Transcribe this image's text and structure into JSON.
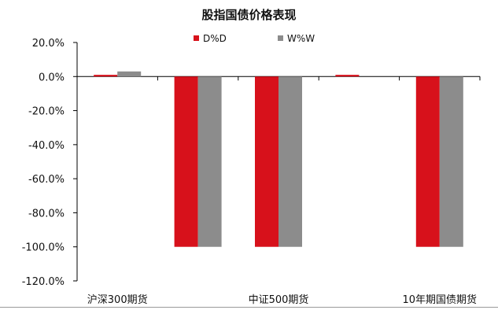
{
  "chart_data": {
    "type": "bar",
    "title": "股指国债价格表现",
    "xlabel": "",
    "ylabel": "",
    "ylim": [
      -120,
      20
    ],
    "y_tick_step": 20,
    "y_tick_labels": [
      "20.0%",
      "0.0%",
      "-20.0%",
      "-40.0%",
      "-60.0%",
      "-80.0%",
      "-100.0%",
      "-120.0%"
    ],
    "categories": [
      "沪深300期货",
      "",
      "中证500期货",
      "",
      "10年期国债期货"
    ],
    "series": [
      {
        "name": "D%D",
        "color": "#d7111b",
        "values": [
          1.0,
          -100.0,
          -100.0,
          1.0,
          -100.0
        ]
      },
      {
        "name": "W%W",
        "color": "#8c8c8c",
        "values": [
          3.0,
          -100.0,
          -100.0,
          0.0,
          -100.0
        ]
      }
    ],
    "legend_position": "top",
    "grid": false
  }
}
